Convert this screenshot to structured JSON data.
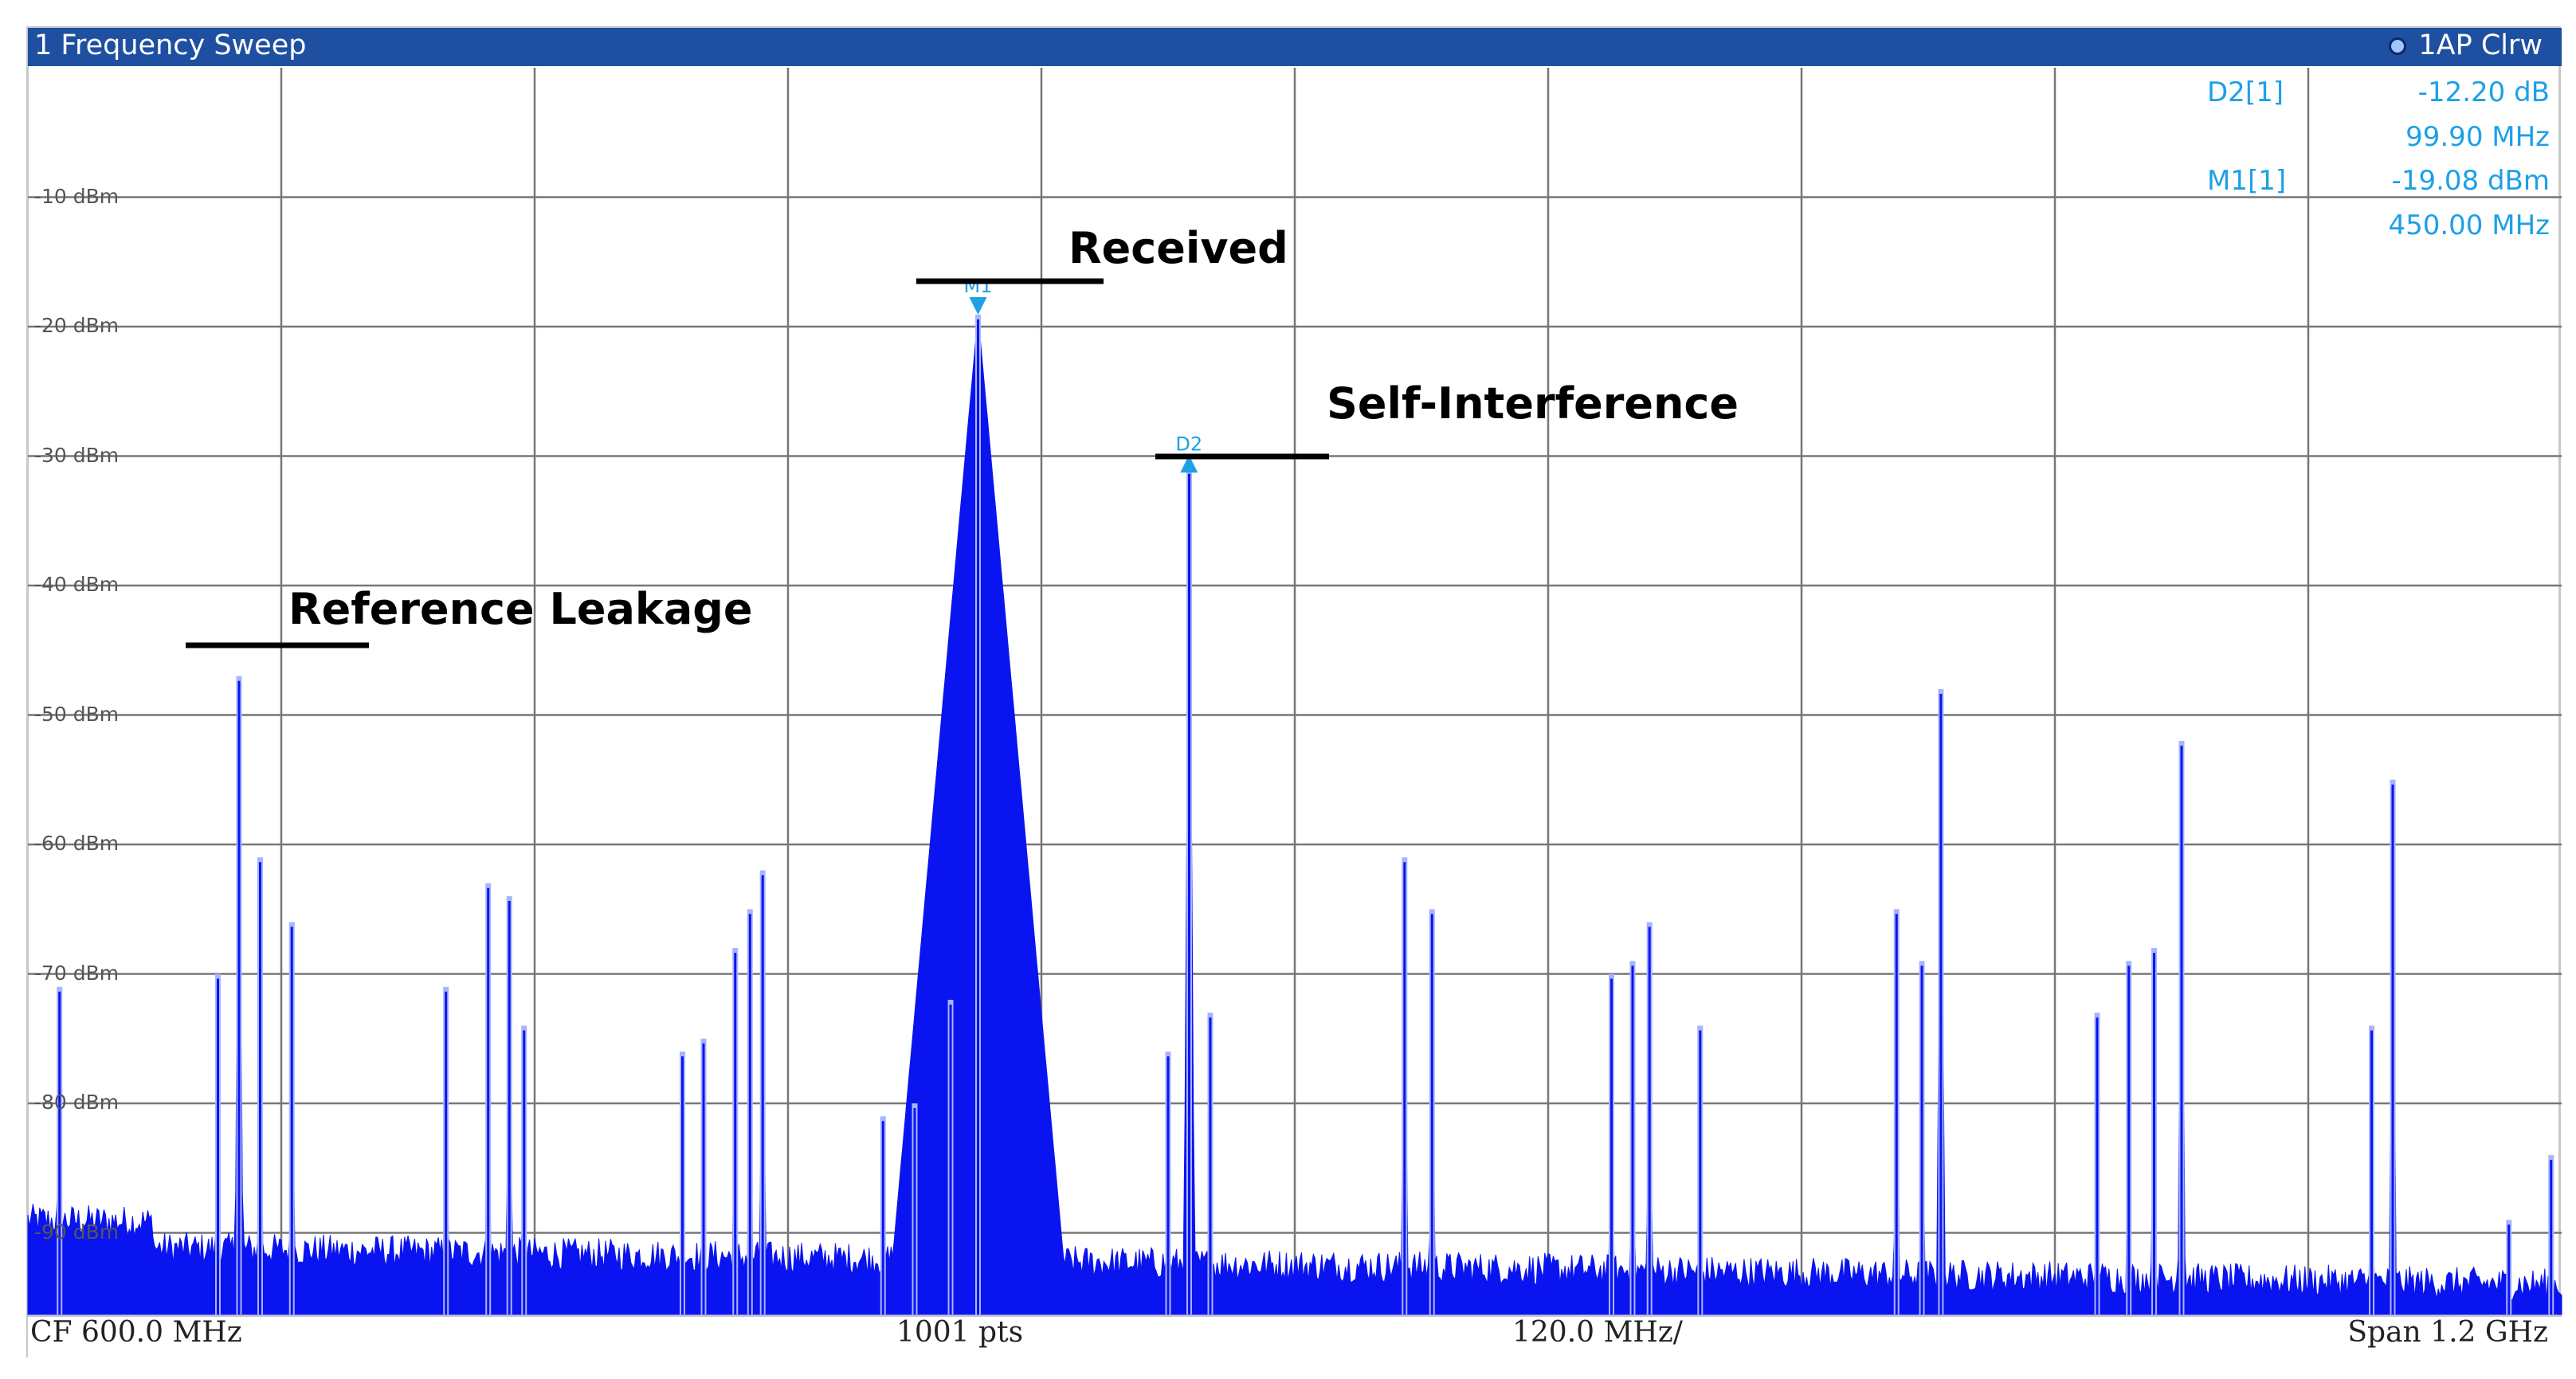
{
  "window": {
    "title": "1 Frequency Sweep",
    "trace_status": "1AP Clrw"
  },
  "colors": {
    "title_bar": "#1e4fa1",
    "trace": "#0a14f0",
    "spike_light": "#a8b4ff",
    "marker": "#1ea0e6",
    "grid": "#777777",
    "background": "#ffffff"
  },
  "readouts": {
    "d2_label": "D2[1]",
    "d2_value": "-12.20 dB",
    "d2_freq": "99.90 MHz",
    "m1_label": "M1[1]",
    "m1_value": "-19.08 dBm",
    "m1_freq": "450.00 MHz"
  },
  "markers": [
    {
      "name": "M1",
      "label": "M1",
      "freq_mhz": 450.0,
      "level_dbm": -19.08
    },
    {
      "name": "D2",
      "label": "D2",
      "freq_mhz": 549.9,
      "level_dbm": -31.28
    }
  ],
  "annotations": {
    "received": "Received",
    "self_interference": "Self-Interference",
    "reference_leakage": "Reference Leakage"
  },
  "footer": {
    "center_freq": "CF 600.0 MHz",
    "points": "1001 pts",
    "div": "120.0 MHz/",
    "span": "Span 1.2 GHz"
  },
  "chart_data": {
    "type": "line",
    "xlim_mhz": [
      0,
      1200
    ],
    "ylim_dbm": [
      -100,
      0
    ],
    "grid": true,
    "y_tick_labels": [
      "-10 dBm",
      "-20 dBm",
      "-30 dBm",
      "-40 dBm",
      "-50 dBm",
      "-60 dBm",
      "-70 dBm",
      "-80 dBm",
      "-90 dBm"
    ],
    "y_tick_values": [
      -10,
      -20,
      -30,
      -40,
      -50,
      -60,
      -70,
      -80,
      -90
    ],
    "noise_floor_dbm": -91,
    "peaks": [
      {
        "f": 15,
        "level": -71
      },
      {
        "f": 90,
        "level": -70
      },
      {
        "f": 100,
        "level": -47
      },
      {
        "f": 110,
        "level": -61
      },
      {
        "f": 125,
        "level": -66
      },
      {
        "f": 198,
        "level": -71
      },
      {
        "f": 218,
        "level": -63
      },
      {
        "f": 228,
        "level": -64
      },
      {
        "f": 235,
        "level": -74
      },
      {
        "f": 310,
        "level": -76
      },
      {
        "f": 320,
        "level": -75
      },
      {
        "f": 335,
        "level": -68
      },
      {
        "f": 342,
        "level": -65
      },
      {
        "f": 348,
        "level": -62
      },
      {
        "f": 405,
        "level": -81
      },
      {
        "f": 420,
        "level": -80
      },
      {
        "f": 437,
        "level": -72
      },
      {
        "f": 450,
        "level": -19.08
      },
      {
        "f": 540,
        "level": -76
      },
      {
        "f": 550,
        "level": -31
      },
      {
        "f": 560,
        "level": -73
      },
      {
        "f": 652,
        "level": -61
      },
      {
        "f": 665,
        "level": -65
      },
      {
        "f": 750,
        "level": -70
      },
      {
        "f": 760,
        "level": -69
      },
      {
        "f": 768,
        "level": -66
      },
      {
        "f": 792,
        "level": -74
      },
      {
        "f": 885,
        "level": -65
      },
      {
        "f": 897,
        "level": -69
      },
      {
        "f": 906,
        "level": -48
      },
      {
        "f": 980,
        "level": -73
      },
      {
        "f": 995,
        "level": -69
      },
      {
        "f": 1007,
        "level": -68
      },
      {
        "f": 1020,
        "level": -52
      },
      {
        "f": 1110,
        "level": -74
      },
      {
        "f": 1120,
        "level": -55
      },
      {
        "f": 1175,
        "level": -89
      },
      {
        "f": 1195,
        "level": -84
      }
    ]
  }
}
